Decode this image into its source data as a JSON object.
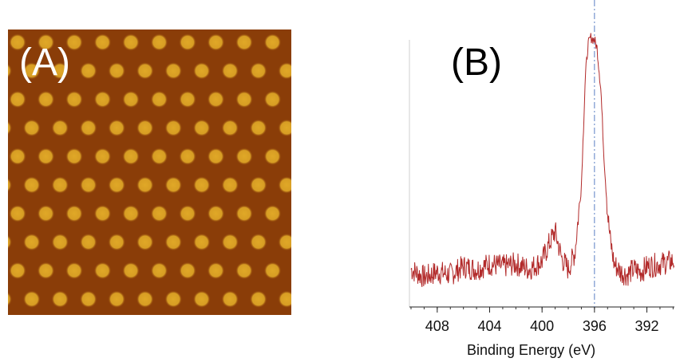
{
  "panel_a": {
    "label": "(A)",
    "background_color": "#8a3d08",
    "spot_color": "#e0a827",
    "rows": 10,
    "cols": 10
  },
  "chart_data": {
    "type": "line",
    "panel_label": "(B)",
    "title": "",
    "xlabel": "Binding Energy (eV)",
    "ylabel": "",
    "xlim": [
      410.0,
      389.9
    ],
    "ylim": [
      0,
      105
    ],
    "x_reversed": true,
    "grid": false,
    "xticks": [
      408,
      404,
      400,
      396,
      392
    ],
    "xtick_labels": [
      "408",
      "404",
      "400",
      "396",
      "392"
    ],
    "minor_tick_step": 1,
    "reference_line": {
      "x": 396.0,
      "style": "dash-dot",
      "color": "#5b7fc4"
    },
    "line_color": "#b22a2a",
    "series": [
      {
        "x": [
          410.0,
          409.0,
          408.0,
          407.0,
          406.0,
          405.0,
          404.0,
          403.0,
          402.0,
          401.0,
          400.0,
          399.5,
          399.0,
          398.5,
          398.0,
          397.5,
          397.0,
          396.7,
          396.5,
          396.3,
          396.0,
          395.8,
          395.5,
          395.3,
          395.0,
          394.8,
          394.5,
          394.0,
          393.5,
          393.0,
          392.5,
          392.0,
          391.0,
          390.0
        ],
        "values": [
          14,
          11,
          13,
          12,
          15,
          14,
          16,
          15,
          16,
          14,
          17,
          23,
          28,
          18,
          14,
          20,
          45,
          85,
          97,
          100,
          99,
          96,
          80,
          58,
          35,
          25,
          16,
          13,
          12,
          14,
          13,
          15,
          16,
          17
        ]
      }
    ]
  }
}
